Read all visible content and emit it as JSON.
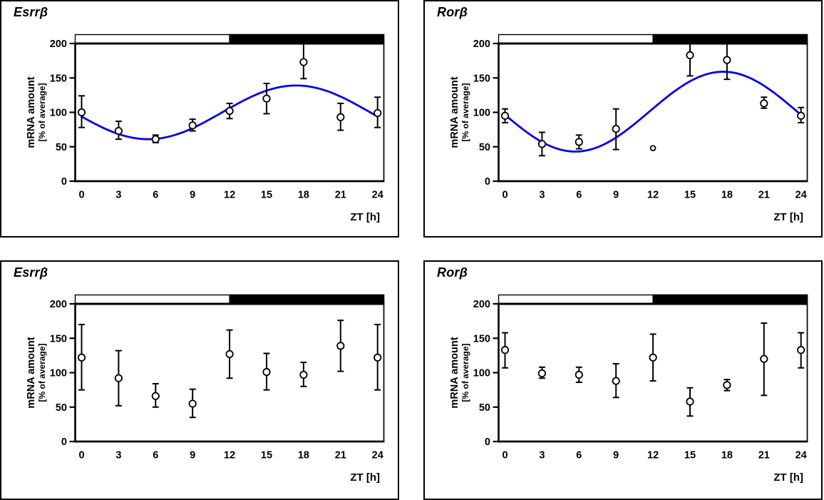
{
  "figure": {
    "background": "#ffffff",
    "panel_border_color": "#000000",
    "layout": "2x2 boxed panels"
  },
  "chart_data": [
    {
      "id": "top-left",
      "type": "scatter",
      "title": "Esrrβ",
      "xlabel": "ZT [h]",
      "ylabel_line1": "mRNA amount",
      "ylabel_line2": "[% of average]",
      "xticks": [
        0,
        3,
        6,
        9,
        12,
        15,
        18,
        21,
        24
      ],
      "yticks": [
        0,
        50,
        100,
        150,
        200
      ],
      "ylim": [
        0,
        213
      ],
      "y_reference_line": 200,
      "x": [
        0,
        3,
        6,
        9,
        12,
        15,
        18,
        21,
        24
      ],
      "values": [
        100,
        73,
        61,
        81,
        102,
        120,
        173,
        93,
        99
      ],
      "err_low": [
        78,
        61,
        56,
        73,
        91,
        98,
        149,
        74,
        78
      ],
      "err_high": [
        124,
        87,
        67,
        90,
        113,
        142,
        200,
        113,
        122
      ],
      "light_dark_bar": {
        "light_from": 0,
        "light_to": 12,
        "dark_from": 12,
        "dark_to": 24,
        "light_color": "#ffffff",
        "dark_color": "#000000"
      },
      "fit_curve": {
        "type": "cosine",
        "mesor": 100,
        "amplitude": 39,
        "peak_zt": 17.4,
        "color": "#0000ee"
      },
      "marker": {
        "shape": "open-circle",
        "fill": "#ffffff",
        "stroke": "#000000"
      },
      "small_markers": []
    },
    {
      "id": "top-right",
      "type": "scatter",
      "title": "Rorβ",
      "xlabel": "ZT [h]",
      "ylabel_line1": "mRNA amount",
      "ylabel_line2": "[% of average]",
      "xticks": [
        0,
        3,
        6,
        9,
        12,
        15,
        18,
        21,
        24
      ],
      "yticks": [
        0,
        50,
        100,
        150,
        200
      ],
      "ylim": [
        0,
        213
      ],
      "y_reference_line": 200,
      "x": [
        0,
        3,
        6,
        9,
        12,
        15,
        18,
        21,
        24
      ],
      "values": [
        95,
        54,
        57,
        76,
        48,
        183,
        176,
        113,
        95
      ],
      "err_low": [
        85,
        37,
        47,
        46,
        null,
        153,
        148,
        106,
        85
      ],
      "err_high": [
        105,
        71,
        67,
        105,
        null,
        212,
        206,
        122,
        107
      ],
      "light_dark_bar": {
        "light_from": 0,
        "light_to": 12,
        "dark_from": 12,
        "dark_to": 24,
        "light_color": "#ffffff",
        "dark_color": "#000000"
      },
      "fit_curve": {
        "type": "cosine",
        "mesor": 101,
        "amplitude": 58,
        "peak_zt": 17.7,
        "color": "#0000ee"
      },
      "marker": {
        "shape": "open-circle",
        "fill": "#ffffff",
        "stroke": "#000000"
      },
      "small_markers": [
        12
      ]
    },
    {
      "id": "bottom-left",
      "type": "scatter",
      "title": "Esrrβ",
      "xlabel": "ZT [h]",
      "ylabel_line1": "mRNA amount",
      "ylabel_line2": "[% of average]",
      "xticks": [
        0,
        3,
        6,
        9,
        12,
        15,
        18,
        21,
        24
      ],
      "yticks": [
        0,
        50,
        100,
        150,
        200
      ],
      "ylim": [
        0,
        213
      ],
      "y_reference_line": 200,
      "x": [
        0,
        3,
        6,
        9,
        12,
        15,
        18,
        21,
        24
      ],
      "values": [
        122,
        92,
        66,
        55,
        127,
        101,
        97,
        139,
        122
      ],
      "err_low": [
        75,
        52,
        50,
        35,
        92,
        75,
        80,
        102,
        75
      ],
      "err_high": [
        170,
        132,
        84,
        76,
        162,
        128,
        115,
        176,
        170
      ],
      "light_dark_bar": {
        "light_from": 0,
        "light_to": 12,
        "dark_from": 12,
        "dark_to": 24,
        "light_color": "#ffffff",
        "dark_color": "#000000"
      },
      "fit_curve": null,
      "marker": {
        "shape": "open-circle",
        "fill": "#ffffff",
        "stroke": "#000000"
      },
      "small_markers": []
    },
    {
      "id": "bottom-right",
      "type": "scatter",
      "title": "Rorβ",
      "xlabel": "ZT [h]",
      "ylabel_line1": "mRNA amount",
      "ylabel_line2": "[% of average]",
      "xticks": [
        0,
        3,
        6,
        9,
        12,
        15,
        18,
        21,
        24
      ],
      "yticks": [
        0,
        50,
        100,
        150,
        200
      ],
      "ylim": [
        0,
        213
      ],
      "y_reference_line": 200,
      "x": [
        0,
        3,
        6,
        9,
        12,
        15,
        18,
        21,
        24
      ],
      "values": [
        133,
        99,
        97,
        88,
        122,
        58,
        82,
        120,
        133
      ],
      "err_low": [
        107,
        92,
        86,
        64,
        88,
        37,
        74,
        67,
        107
      ],
      "err_high": [
        158,
        108,
        108,
        113,
        156,
        78,
        90,
        172,
        158
      ],
      "light_dark_bar": {
        "light_from": 0,
        "light_to": 12,
        "dark_from": 12,
        "dark_to": 24,
        "light_color": "#ffffff",
        "dark_color": "#000000"
      },
      "fit_curve": null,
      "marker": {
        "shape": "open-circle",
        "fill": "#ffffff",
        "stroke": "#000000"
      },
      "small_markers": []
    }
  ]
}
